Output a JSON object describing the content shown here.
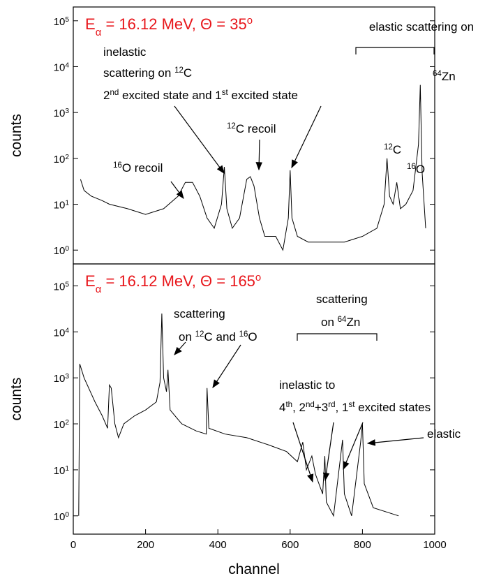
{
  "chart_data": [
    {
      "type": "line",
      "title": "E_{α} = 16.12 MeV, Θ = 35^{o}",
      "y_label": "counts",
      "ylog": true,
      "xlim": [
        0,
        1000
      ],
      "ylim": [
        0.5,
        200000
      ],
      "yticks": [
        {
          "value": 1,
          "label": "10^{0}"
        },
        {
          "value": 10,
          "label": "10^{1}"
        },
        {
          "value": 100,
          "label": "10^{2}"
        },
        {
          "value": 1000,
          "label": "10^{3}"
        },
        {
          "value": 10000,
          "label": "10^{4}"
        },
        {
          "value": 100000,
          "label": "10^{5}"
        }
      ],
      "x": [
        20,
        30,
        50,
        80,
        100,
        150,
        200,
        250,
        290,
        310,
        330,
        350,
        370,
        390,
        410,
        418,
        425,
        440,
        460,
        480,
        490,
        500,
        515,
        530,
        560,
        580,
        595,
        600,
        605,
        620,
        650,
        700,
        750,
        800,
        840,
        860,
        868,
        875,
        885,
        895,
        905,
        920,
        940,
        955,
        960,
        965,
        975
      ],
      "series": [
        {
          "color": "#000000",
          "values": [
            35,
            20,
            15,
            12,
            10,
            8,
            6,
            8,
            15,
            30,
            30,
            15,
            5,
            3,
            10,
            65,
            8,
            3,
            5,
            35,
            40,
            25,
            5,
            2,
            2,
            1,
            5,
            55,
            5,
            2,
            1.5,
            1.5,
            1.5,
            2,
            3,
            10,
            100,
            15,
            10,
            30,
            8,
            10,
            20,
            200,
            4000,
            50,
            3
          ]
        }
      ],
      "annotations": [
        "inelastic",
        "scattering on ^{12}C",
        "2^{nd} excited state and 1^{st} excited state",
        "^{12}C recoil",
        "^{16}O recoil",
        "elastic scattering on",
        "^{64}Zn",
        "^{12}C",
        "^{16}O"
      ]
    },
    {
      "type": "line",
      "title": "E_{α} = 16.12 MeV, Θ = 165^{o}",
      "y_label": "counts",
      "x_label": "channel",
      "ylog": true,
      "xlim": [
        0,
        1000
      ],
      "ylim": [
        0.4,
        300000
      ],
      "xticks": [
        0,
        200,
        400,
        600,
        800,
        1000
      ],
      "yticks": [
        {
          "value": 1,
          "label": "10^{0}"
        },
        {
          "value": 10,
          "label": "10^{1}"
        },
        {
          "value": 100,
          "label": "10^{2}"
        },
        {
          "value": 1000,
          "label": "10^{3}"
        },
        {
          "value": 10000,
          "label": "10^{4}"
        },
        {
          "value": 100000,
          "label": "10^{5}"
        }
      ],
      "x": [
        15,
        18,
        30,
        60,
        80,
        95,
        100,
        105,
        115,
        125,
        140,
        170,
        200,
        230,
        240,
        245,
        250,
        258,
        262,
        268,
        300,
        340,
        368,
        370,
        375,
        420,
        480,
        540,
        590,
        620,
        635,
        645,
        660,
        670,
        690,
        696,
        700,
        720,
        745,
        750,
        770,
        795,
        800,
        805,
        830,
        900
      ],
      "series": [
        {
          "color": "#000000",
          "values": [
            1,
            2000,
            1000,
            300,
            150,
            80,
            700,
            600,
            100,
            50,
            100,
            150,
            200,
            300,
            800,
            25000,
            1000,
            500,
            1500,
            200,
            100,
            70,
            60,
            600,
            80,
            60,
            50,
            35,
            25,
            15,
            40,
            10,
            20,
            8,
            3,
            20,
            2,
            1,
            45,
            3,
            1,
            40,
            100,
            5,
            1.5,
            1
          ]
        }
      ],
      "annotations": [
        "scattering",
        "on ^{12}C and ^{16}O",
        "scattering",
        "on ^{64}Zn",
        "inelastic to",
        "4^{th}, 2^{nd}+3^{rd}, 1^{st} excited states",
        "elastic"
      ]
    }
  ]
}
